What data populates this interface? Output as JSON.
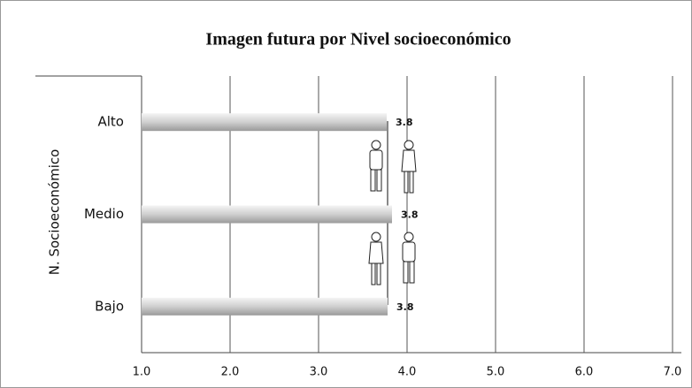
{
  "chart_data": {
    "type": "hbar",
    "title": "Imagen futura por Nivel socioeconómico",
    "y_label": "N. Socioeconómico",
    "categories": [
      "Alto",
      "Medio",
      "Bajo"
    ],
    "values": [
      3.77,
      3.83,
      3.78
    ],
    "value_labels": [
      "3.8",
      "3.8",
      "3.8"
    ],
    "color": "#cfcfcf",
    "xlim": [
      1.0,
      7.0
    ],
    "xticks": [
      {
        "value": 1,
        "label": "1.0"
      },
      {
        "value": 2,
        "label": "2.0"
      },
      {
        "value": 3,
        "label": "3.0"
      },
      {
        "value": 4,
        "label": "4.0"
      },
      {
        "value": 5,
        "label": "5.0"
      },
      {
        "value": 6,
        "label": "6.0"
      },
      {
        "value": 7,
        "label": "7.0"
      }
    ],
    "grid": true
  }
}
